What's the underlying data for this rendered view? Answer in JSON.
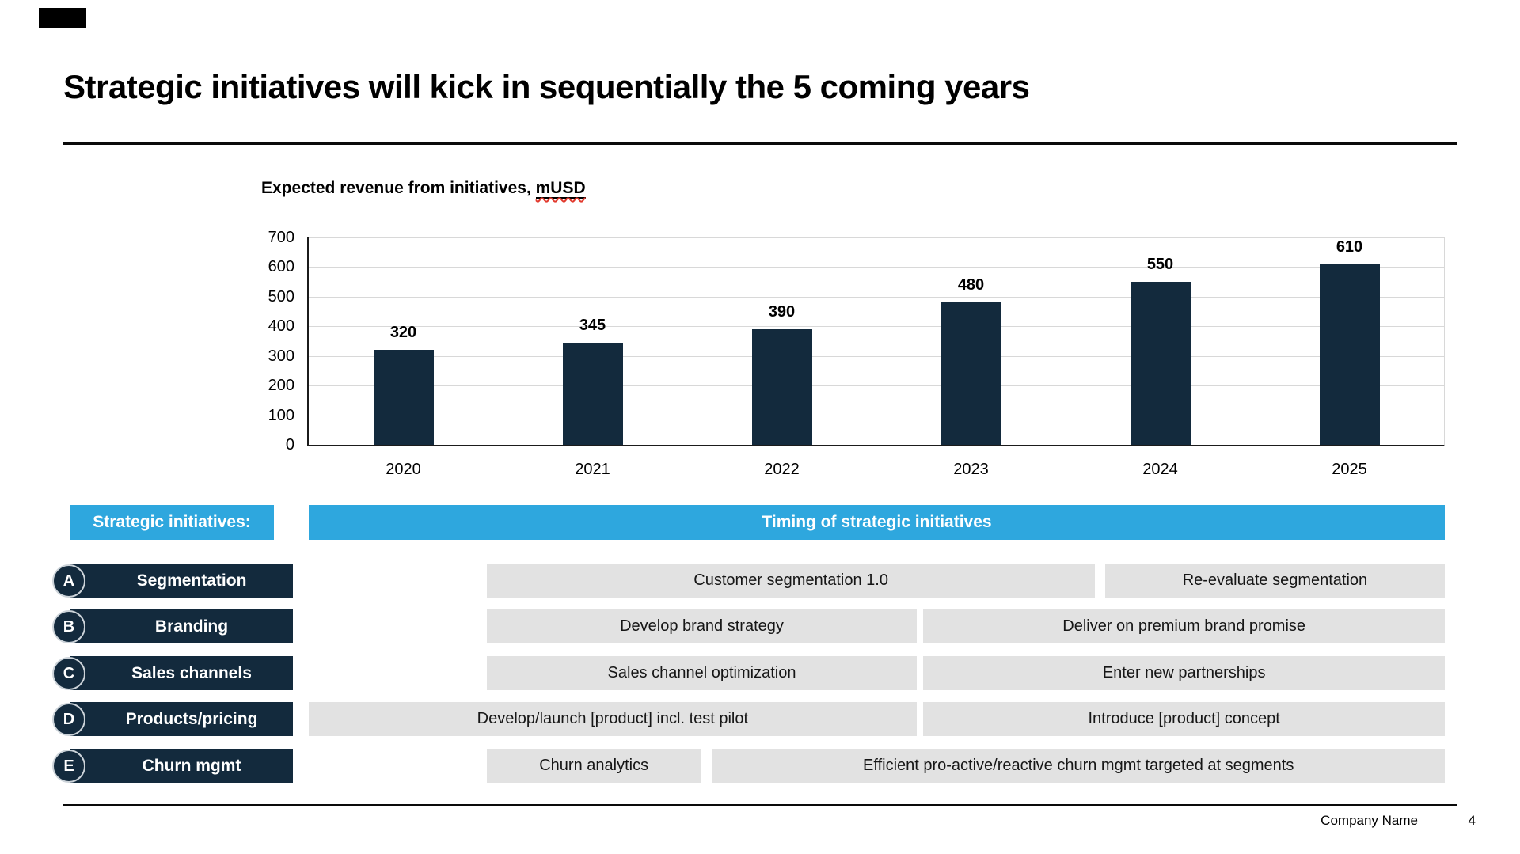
{
  "slide": {
    "title": "Strategic initiatives will kick in sequentially the 5 coming years",
    "footer": {
      "company": "Company Name",
      "page": "4"
    }
  },
  "chart_data": {
    "type": "bar",
    "title_prefix": "Expected revenue from initiatives, ",
    "title_unit": "mUSD",
    "categories": [
      "2020",
      "2021",
      "2022",
      "2023",
      "2024",
      "2025"
    ],
    "values": [
      320,
      345,
      390,
      480,
      550,
      610
    ],
    "xlabel": "",
    "ylabel": "",
    "ylim": [
      0,
      700
    ],
    "ytick_step": 100,
    "grid": true,
    "legend": "none",
    "bar_color": "#132a3d",
    "gridline_color": "#d8d8d8"
  },
  "timeline": {
    "left_header": "Strategic initiatives:",
    "header": "Timing of strategic initiatives",
    "accent_color": "#2ea7de",
    "row_color": "#132a3d",
    "bar_color": "#e2e2e2",
    "rows": [
      {
        "letter": "A",
        "label": "Segmentation",
        "bars": [
          {
            "text": "Customer segmentation 1.0",
            "left_pct": 15.7,
            "width_pct": 53.5
          },
          {
            "text": "Re-evaluate segmentation",
            "left_pct": 70.1,
            "width_pct": 29.9
          }
        ]
      },
      {
        "letter": "B",
        "label": "Branding",
        "bars": [
          {
            "text": "Develop brand strategy",
            "left_pct": 15.7,
            "width_pct": 37.8
          },
          {
            "text": "Deliver on premium brand promise",
            "left_pct": 54.1,
            "width_pct": 45.9
          }
        ]
      },
      {
        "letter": "C",
        "label": "Sales channels",
        "bars": [
          {
            "text": "Sales channel optimization",
            "left_pct": 15.7,
            "width_pct": 37.8
          },
          {
            "text": "Enter new partnerships",
            "left_pct": 54.1,
            "width_pct": 45.9
          }
        ]
      },
      {
        "letter": "D",
        "label": "Products/pricing",
        "bars": [
          {
            "text": "Develop/launch [product] incl. test pilot",
            "left_pct": 0,
            "width_pct": 53.5
          },
          {
            "text": "Introduce [product] concept",
            "left_pct": 54.1,
            "width_pct": 45.9
          }
        ]
      },
      {
        "letter": "E",
        "label": "Churn mgmt",
        "bars": [
          {
            "text": "Churn analytics",
            "left_pct": 15.7,
            "width_pct": 18.8
          },
          {
            "text": "Efficient pro-active/reactive churn mgmt targeted at segments",
            "left_pct": 35.5,
            "width_pct": 64.5
          }
        ]
      }
    ]
  }
}
